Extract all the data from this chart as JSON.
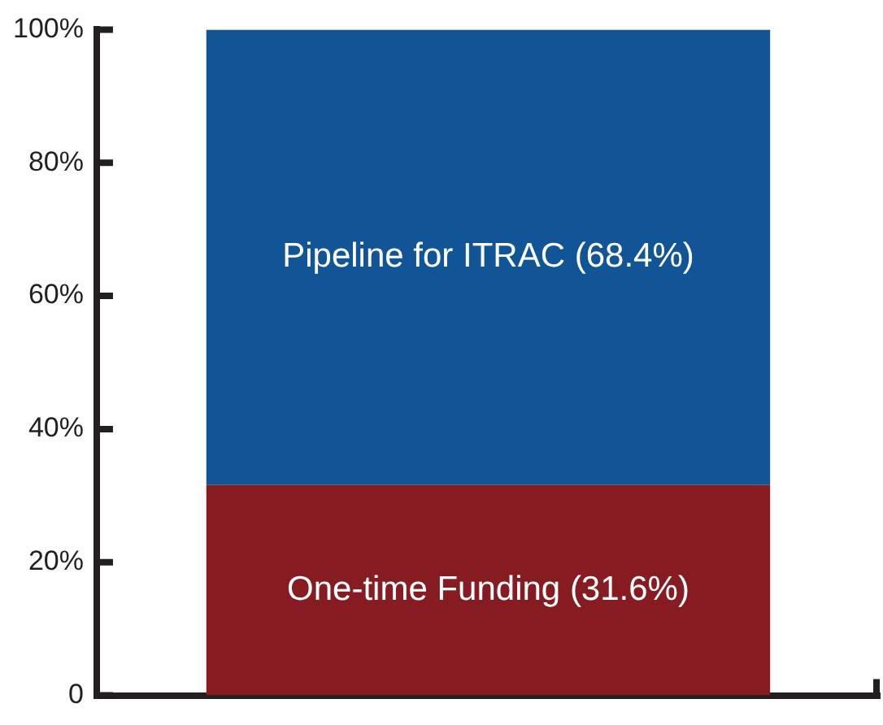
{
  "chart_data": {
    "type": "bar",
    "stacked": true,
    "categories": [
      null
    ],
    "series": [
      {
        "name": "One-time Funding",
        "color": "#861b21",
        "values": [
          31.6
        ],
        "value_labels": [
          "(31.6%)"
        ]
      },
      {
        "name": "Pipeline for ITRAC",
        "color": "#125597",
        "values": [
          68.4
        ],
        "value_labels": [
          "(68.4%)"
        ]
      }
    ],
    "ylim": [
      0,
      100
    ],
    "yticks": [
      {
        "value": 0,
        "label": "0"
      },
      {
        "value": 20,
        "label": "20%"
      },
      {
        "value": 40,
        "label": "40%"
      },
      {
        "value": 60,
        "label": "60%"
      },
      {
        "value": 80,
        "label": "80%"
      },
      {
        "value": 100,
        "label": "100%"
      }
    ],
    "grid": false,
    "legend": false
  }
}
